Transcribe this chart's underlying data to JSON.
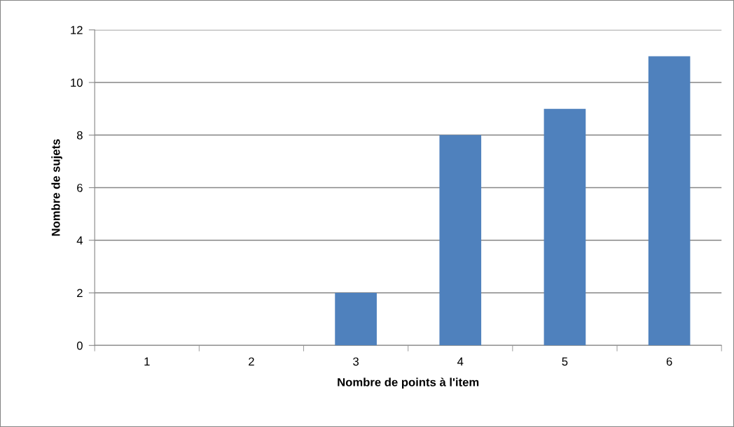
{
  "chart_data": {
    "type": "bar",
    "xlabel": "Nombre de points à l'item",
    "ylabel": "Nombre de sujets",
    "categories": [
      "1",
      "2",
      "3",
      "4",
      "5",
      "6"
    ],
    "values": [
      0,
      0,
      2,
      8,
      9,
      11
    ],
    "color": "#4f81bd",
    "ylim": [
      0,
      12
    ],
    "yticks": [
      0,
      2,
      4,
      6,
      8,
      10,
      12
    ],
    "grid": "y"
  }
}
